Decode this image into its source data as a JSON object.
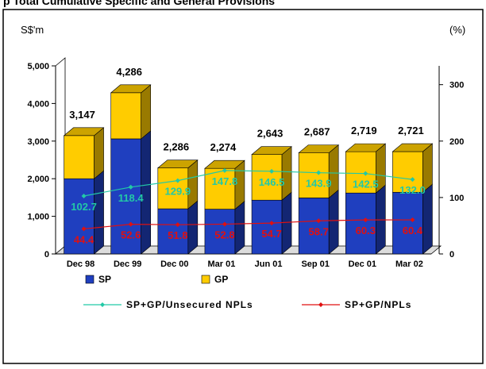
{
  "header": {
    "title": "p  Total Cumulative Specific and General Provisions"
  },
  "chart_data": {
    "type": "bar",
    "stacked": true,
    "y_left_unit": "S$'m",
    "y_right_unit": "(%)",
    "ylim": [
      0,
      5000
    ],
    "y2lim": [
      0,
      333.3
    ],
    "y_ticks": [
      {
        "value": 0,
        "label": "0"
      },
      {
        "value": 1000,
        "label": "1,000"
      },
      {
        "value": 2000,
        "label": "2,000"
      },
      {
        "value": 3000,
        "label": "3,000"
      },
      {
        "value": 4000,
        "label": "4,000"
      },
      {
        "value": 5000,
        "label": "5,000"
      }
    ],
    "y2_ticks": [
      {
        "value": 0,
        "label": "0"
      },
      {
        "value": 100,
        "label": "100"
      },
      {
        "value": 200,
        "label": "200"
      },
      {
        "value": 300,
        "label": "300"
      }
    ],
    "categories": [
      "Dec 98",
      "Dec 99",
      "Dec 00",
      "Mar 01",
      "Jun 01",
      "Sep 01",
      "Dec 01",
      "Mar 02"
    ],
    "series": [
      {
        "name": "SP",
        "color": "#1f3fbf",
        "values": [
          2000,
          3060,
          1200,
          1190,
          1430,
          1490,
          1620,
          1640
        ]
      },
      {
        "name": "GP",
        "color": "#ffcc00",
        "values": [
          1147,
          1226,
          1086,
          1084,
          1213,
          1197,
          1099,
          1081
        ]
      }
    ],
    "totals": [
      3147,
      4286,
      2286,
      2274,
      2643,
      2687,
      2719,
      2721
    ],
    "total_labels": [
      "3,147",
      "4,286",
      "2,286",
      "2,274",
      "2,643",
      "2,687",
      "2,719",
      "2,721"
    ],
    "lines": [
      {
        "name": "SP+GP/Unsecured NPLs",
        "color": "#22c9a6",
        "axis": "right",
        "values": [
          102.7,
          118.4,
          129.9,
          147.8,
          146.5,
          143.9,
          142.5,
          132.0
        ],
        "labels": [
          "102.7",
          "118.4",
          "129.9",
          "147.8",
          "146.5",
          "143.9",
          "142.5",
          "132.0"
        ]
      },
      {
        "name": "SP+GP/NPLs",
        "color": "#e01010",
        "axis": "right",
        "values": [
          44.4,
          52.6,
          51.8,
          52.8,
          54.7,
          58.7,
          60.3,
          60.4
        ],
        "labels": [
          "44.4",
          "52.6",
          "51.8",
          "52.8",
          "54.7",
          "58.7",
          "60.3",
          "60.4"
        ]
      }
    ],
    "legend_placement": "bottom"
  }
}
